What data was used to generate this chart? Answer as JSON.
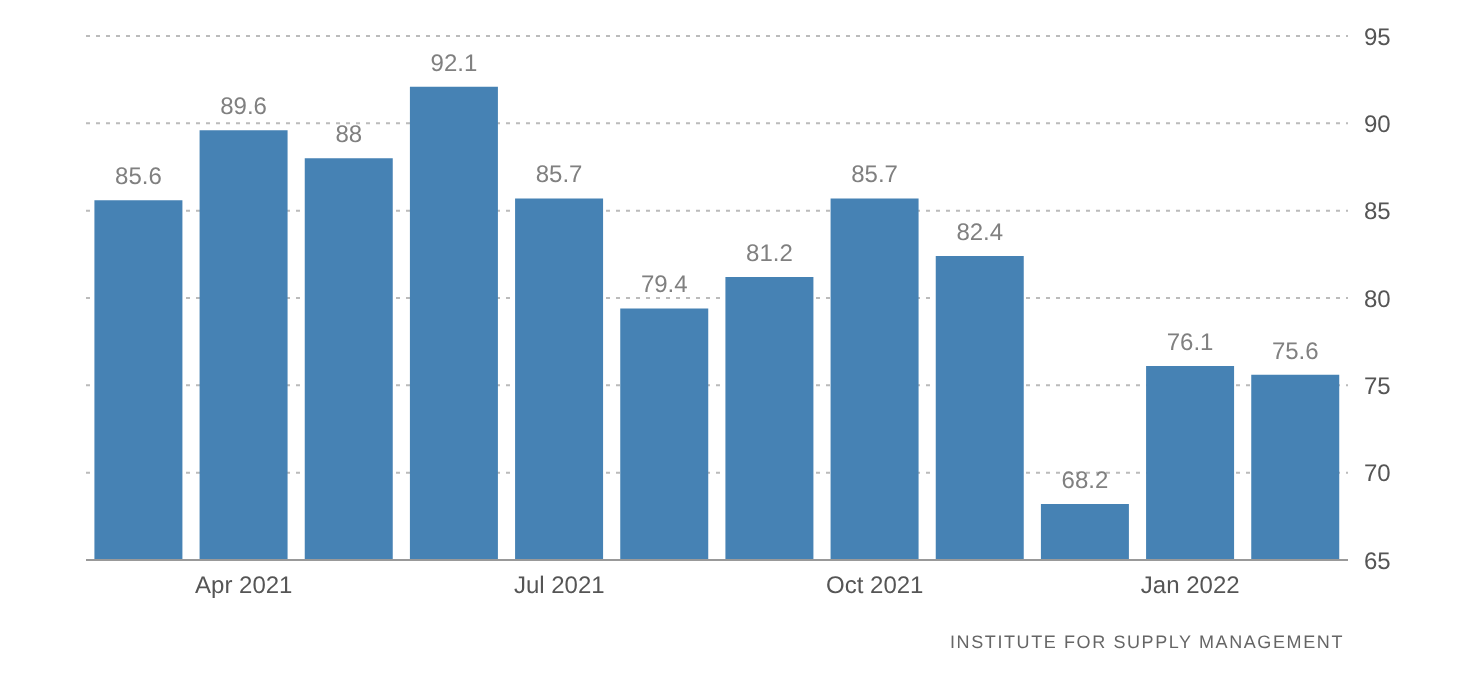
{
  "chart_data": {
    "type": "bar",
    "categories": [
      null,
      "Apr 2021",
      null,
      null,
      "Jul 2021",
      null,
      null,
      "Oct 2021",
      null,
      null,
      "Jan 2022",
      null
    ],
    "values": [
      85.6,
      89.6,
      88,
      92.1,
      85.7,
      79.4,
      81.2,
      85.7,
      82.4,
      68.2,
      76.1,
      75.6
    ],
    "color": "#4682b4",
    "ylim": [
      65,
      95
    ],
    "yticks": [
      65,
      70,
      75,
      80,
      85,
      90,
      95
    ],
    "grid": "y",
    "data_labels": true,
    "annotations": [
      "INSTITUTE FOR SUPPLY MANAGEMENT"
    ]
  }
}
